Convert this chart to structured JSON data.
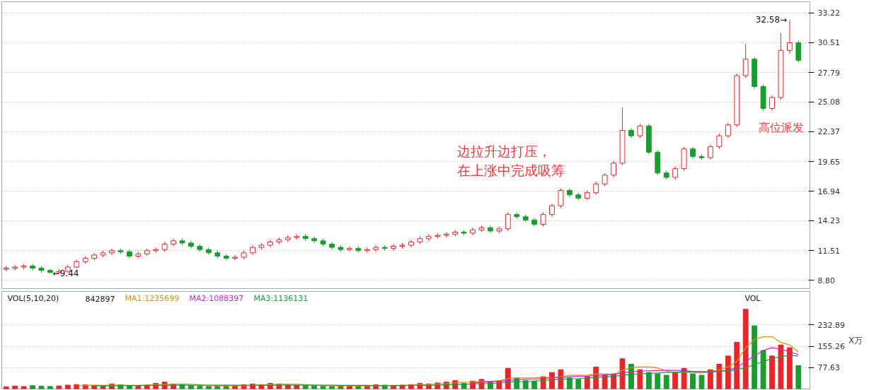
{
  "chart_data": [
    {
      "type": "candlestick",
      "categories": [
        null,
        null,
        null,
        null,
        null,
        null,
        null,
        null,
        null,
        null,
        null,
        null,
        null,
        null,
        null,
        null,
        null,
        null,
        null,
        null,
        null,
        null,
        null,
        null,
        null,
        null,
        null,
        null,
        null,
        null,
        null,
        null,
        null,
        null,
        null,
        null,
        null,
        null,
        null,
        null,
        null,
        null,
        null,
        null,
        null,
        null,
        null,
        null,
        null,
        null,
        null,
        null,
        null,
        null,
        null,
        null,
        null,
        null,
        null,
        null,
        null,
        null,
        null,
        null,
        null,
        null,
        null,
        null,
        null,
        null,
        null,
        null,
        null,
        null,
        null,
        null,
        null,
        null,
        null,
        null,
        null,
        null,
        null,
        null,
        null,
        null,
        null,
        null,
        null,
        null,
        null
      ],
      "ohlc": [
        [
          9.8,
          10.1,
          9.6,
          9.9
        ],
        [
          9.9,
          10.2,
          9.7,
          10.0
        ],
        [
          10.0,
          10.3,
          9.8,
          10.1
        ],
        [
          10.1,
          10.3,
          9.7,
          9.9
        ],
        [
          9.9,
          10.1,
          9.5,
          9.7
        ],
        [
          9.7,
          9.8,
          9.44,
          9.5
        ],
        [
          9.5,
          9.8,
          9.45,
          9.6
        ],
        [
          9.6,
          10.2,
          9.5,
          10.0
        ],
        [
          10.0,
          10.7,
          9.9,
          10.5
        ],
        [
          10.5,
          11.0,
          10.3,
          10.8
        ],
        [
          10.8,
          11.3,
          10.6,
          11.1
        ],
        [
          11.1,
          11.5,
          10.9,
          11.3
        ],
        [
          11.3,
          11.7,
          11.1,
          11.5
        ],
        [
          11.5,
          11.7,
          11.2,
          11.4
        ],
        [
          11.4,
          11.6,
          10.8,
          11.0
        ],
        [
          11.0,
          11.4,
          10.8,
          11.2
        ],
        [
          11.2,
          11.7,
          11.0,
          11.5
        ],
        [
          11.5,
          11.8,
          11.3,
          11.6
        ],
        [
          11.6,
          12.3,
          11.4,
          12.1
        ],
        [
          12.1,
          12.6,
          11.9,
          12.4
        ],
        [
          12.4,
          12.6,
          12.0,
          12.2
        ],
        [
          12.2,
          12.4,
          11.7,
          11.9
        ],
        [
          11.9,
          12.1,
          11.4,
          11.6
        ],
        [
          11.6,
          11.8,
          11.1,
          11.3
        ],
        [
          11.3,
          11.5,
          10.8,
          11.0
        ],
        [
          11.0,
          11.2,
          10.6,
          10.8
        ],
        [
          10.8,
          11.1,
          10.6,
          10.9
        ],
        [
          10.9,
          11.5,
          10.7,
          11.3
        ],
        [
          11.3,
          12.0,
          11.1,
          11.8
        ],
        [
          11.8,
          12.2,
          11.6,
          12.0
        ],
        [
          12.0,
          12.5,
          11.8,
          12.3
        ],
        [
          12.3,
          12.7,
          12.1,
          12.5
        ],
        [
          12.5,
          12.9,
          12.3,
          12.7
        ],
        [
          12.7,
          13.0,
          12.5,
          12.8
        ],
        [
          12.8,
          13.0,
          12.4,
          12.6
        ],
        [
          12.6,
          12.8,
          12.2,
          12.4
        ],
        [
          12.4,
          12.6,
          11.9,
          12.1
        ],
        [
          12.1,
          12.3,
          11.6,
          11.8
        ],
        [
          11.8,
          12.0,
          11.4,
          11.6
        ],
        [
          11.6,
          11.9,
          11.4,
          11.7
        ],
        [
          11.7,
          11.9,
          11.3,
          11.5
        ],
        [
          11.5,
          11.8,
          11.3,
          11.6
        ],
        [
          11.6,
          12.0,
          11.4,
          11.8
        ],
        [
          11.8,
          12.0,
          11.5,
          11.7
        ],
        [
          11.7,
          12.1,
          11.5,
          11.9
        ],
        [
          11.9,
          12.2,
          11.7,
          12.0
        ],
        [
          12.0,
          12.5,
          11.8,
          12.3
        ],
        [
          12.3,
          12.8,
          12.1,
          12.6
        ],
        [
          12.6,
          13.0,
          12.4,
          12.8
        ],
        [
          12.8,
          13.1,
          12.6,
          12.9
        ],
        [
          12.9,
          13.2,
          12.7,
          13.0
        ],
        [
          13.0,
          13.4,
          12.8,
          13.2
        ],
        [
          13.2,
          13.4,
          12.9,
          13.1
        ],
        [
          13.1,
          13.6,
          12.9,
          13.4
        ],
        [
          13.4,
          13.8,
          13.2,
          13.6
        ],
        [
          13.6,
          13.8,
          13.1,
          13.3
        ],
        [
          13.3,
          13.7,
          13.1,
          13.5
        ],
        [
          13.5,
          15.0,
          13.3,
          14.8
        ],
        [
          14.8,
          15.0,
          14.4,
          14.6
        ],
        [
          14.6,
          14.8,
          14.1,
          14.3
        ],
        [
          14.3,
          14.5,
          13.7,
          13.9
        ],
        [
          13.9,
          15.0,
          13.7,
          14.8
        ],
        [
          14.8,
          15.8,
          14.6,
          15.6
        ],
        [
          15.6,
          17.2,
          15.4,
          17.0
        ],
        [
          17.0,
          17.2,
          16.4,
          16.6
        ],
        [
          16.6,
          16.8,
          16.1,
          16.3
        ],
        [
          16.3,
          17.0,
          16.1,
          16.8
        ],
        [
          16.8,
          17.8,
          16.6,
          17.6
        ],
        [
          17.6,
          18.6,
          17.4,
          18.4
        ],
        [
          18.4,
          19.7,
          18.2,
          19.5
        ],
        [
          19.5,
          24.6,
          19.3,
          22.5
        ],
        [
          22.5,
          22.7,
          21.8,
          22.0
        ],
        [
          22.0,
          23.1,
          21.8,
          22.9
        ],
        [
          22.9,
          23.1,
          20.3,
          20.5
        ],
        [
          20.5,
          20.7,
          18.4,
          18.6
        ],
        [
          18.6,
          18.8,
          18.0,
          18.2
        ],
        [
          18.2,
          19.2,
          18.0,
          19.0
        ],
        [
          19.0,
          21.0,
          18.8,
          20.8
        ],
        [
          20.8,
          21.0,
          19.9,
          20.1
        ],
        [
          20.1,
          20.3,
          19.8,
          20.0
        ],
        [
          20.0,
          21.2,
          19.8,
          21.0
        ],
        [
          21.0,
          22.2,
          20.8,
          22.0
        ],
        [
          22.0,
          23.2,
          21.8,
          23.0
        ],
        [
          23.0,
          27.7,
          22.8,
          27.5
        ],
        [
          27.5,
          30.4,
          27.3,
          29.0
        ],
        [
          29.0,
          29.2,
          26.3,
          26.5
        ],
        [
          26.5,
          26.7,
          24.3,
          24.5
        ],
        [
          24.5,
          25.7,
          24.3,
          25.5
        ],
        [
          25.5,
          31.4,
          25.3,
          29.8
        ],
        [
          29.8,
          32.58,
          29.5,
          30.5
        ],
        [
          30.5,
          30.7,
          28.7,
          28.9
        ]
      ],
      "ylim": [
        8.03,
        34.25
      ],
      "yticks": [
        {
          "value": 8.8,
          "label": "8.80"
        },
        11.51,
        14.23,
        16.94,
        19.65,
        22.37,
        25.08,
        27.79,
        30.51,
        33.22
      ],
      "grid": "y",
      "tick_labels": "y",
      "annotations": [
        "←9.44",
        "32.58→",
        "边拉升边打压，",
        "在上涨中完成吸筹",
        "高位派发"
      ]
    },
    {
      "type": "bar",
      "categories": [
        null,
        null,
        null,
        null,
        null,
        null,
        null,
        null,
        null,
        null,
        null,
        null,
        null,
        null,
        null,
        null,
        null,
        null,
        null,
        null,
        null,
        null,
        null,
        null,
        null,
        null,
        null,
        null,
        null,
        null,
        null,
        null,
        null,
        null,
        null,
        null,
        null,
        null,
        null,
        null,
        null,
        null,
        null,
        null,
        null,
        null,
        null,
        null,
        null,
        null,
        null,
        null,
        null,
        null,
        null,
        null,
        null,
        null,
        null,
        null,
        null,
        null,
        null,
        null,
        null,
        null,
        null,
        null,
        null,
        null,
        null,
        null,
        null,
        null,
        null,
        null,
        null,
        null,
        null,
        null,
        null,
        null,
        null,
        null,
        null,
        null,
        null,
        null,
        null,
        null,
        null
      ],
      "series": [
        {
          "type": "bar",
          "values": [
            8,
            10,
            9,
            12,
            10,
            9,
            11,
            14,
            16,
            15,
            12,
            10,
            18,
            15,
            12,
            10,
            14,
            20,
            25,
            18,
            15,
            12,
            10,
            9,
            11,
            13,
            12,
            15,
            18,
            16,
            20,
            18,
            15,
            14,
            12,
            11,
            10,
            9,
            12,
            10,
            10,
            12,
            15,
            14,
            12,
            14,
            16,
            20,
            18,
            22,
            25,
            30,
            20,
            28,
            35,
            25,
            30,
            75,
            40,
            30,
            28,
            45,
            60,
            70,
            40,
            35,
            45,
            80,
            50,
            55,
            110,
            90,
            70,
            60,
            55,
            50,
            60,
            75,
            55,
            50,
            70,
            90,
            120,
            170,
            290,
            230,
            140,
            120,
            160,
            150,
            85
          ],
          "colors": [
            "#e8262a",
            "#e8262a",
            "#e8262a",
            "#1a9c2f",
            "#1a9c2f",
            "#1a9c2f",
            "#e8262a",
            "#e8262a",
            "#e8262a",
            "#e8262a",
            "#e8262a",
            "#e8262a",
            "#e8262a",
            "#1a9c2f",
            "#1a9c2f",
            "#e8262a",
            "#e8262a",
            "#e8262a",
            "#e8262a",
            "#e8262a",
            "#1a9c2f",
            "#1a9c2f",
            "#1a9c2f",
            "#1a9c2f",
            "#1a9c2f",
            "#1a9c2f",
            "#e8262a",
            "#e8262a",
            "#e8262a",
            "#e8262a",
            "#e8262a",
            "#e8262a",
            "#e8262a",
            "#e8262a",
            "#1a9c2f",
            "#1a9c2f",
            "#1a9c2f",
            "#1a9c2f",
            "#1a9c2f",
            "#e8262a",
            "#1a9c2f",
            "#e8262a",
            "#e8262a",
            "#1a9c2f",
            "#e8262a",
            "#e8262a",
            "#e8262a",
            "#e8262a",
            "#e8262a",
            "#e8262a",
            "#e8262a",
            "#e8262a",
            "#1a9c2f",
            "#e8262a",
            "#e8262a",
            "#1a9c2f",
            "#e8262a",
            "#e8262a",
            "#1a9c2f",
            "#1a9c2f",
            "#1a9c2f",
            "#e8262a",
            "#e8262a",
            "#e8262a",
            "#1a9c2f",
            "#1a9c2f",
            "#e8262a",
            "#e8262a",
            "#e8262a",
            "#e8262a",
            "#e8262a",
            "#1a9c2f",
            "#e8262a",
            "#1a9c2f",
            "#1a9c2f",
            "#1a9c2f",
            "#e8262a",
            "#e8262a",
            "#1a9c2f",
            "#1a9c2f",
            "#e8262a",
            "#e8262a",
            "#e8262a",
            "#e8262a",
            "#e8262a",
            "#1a9c2f",
            "#1a9c2f",
            "#e8262a",
            "#e8262a",
            "#e8262a",
            "#1a9c2f"
          ]
        },
        {
          "type": "line",
          "name": "MA1:1235699",
          "color": "#d4920a",
          "values": [
            null,
            null,
            null,
            null,
            null,
            null,
            null,
            null,
            12,
            13,
            14,
            13,
            14,
            14,
            13,
            13,
            14,
            15,
            16,
            17,
            18,
            17,
            15,
            12,
            11,
            11,
            11,
            12,
            14,
            15,
            16,
            17,
            17,
            17,
            16,
            14,
            12,
            11,
            11,
            11,
            11,
            11,
            12,
            12,
            13,
            13,
            14,
            15,
            16,
            18,
            20,
            23,
            24,
            25,
            28,
            28,
            30,
            38,
            40,
            40,
            40,
            44,
            40,
            45,
            50,
            50,
            50,
            55,
            55,
            52,
            68,
            78,
            80,
            80,
            77,
            65,
            60,
            60,
            60,
            58,
            62,
            70,
            80,
            100,
            150,
            180,
            190,
            190,
            170,
            160,
            135
          ]
        },
        {
          "type": "line",
          "name": "MA2:1088397",
          "color": "#d21fd2",
          "values": [
            null,
            null,
            null,
            null,
            null,
            null,
            null,
            null,
            null,
            null,
            null,
            null,
            null,
            null,
            null,
            null,
            null,
            null,
            null,
            null,
            null,
            null,
            null,
            null,
            null,
            null,
            null,
            null,
            null,
            null,
            null,
            null,
            null,
            null,
            null,
            null,
            null,
            null,
            null,
            null,
            null,
            null,
            null,
            null,
            null,
            null,
            null,
            null,
            null,
            null,
            null,
            null,
            null,
            22,
            24,
            26,
            28,
            31,
            33,
            35,
            36,
            38,
            40,
            42,
            44,
            46,
            47,
            49,
            51,
            53,
            58,
            62,
            65,
            66,
            67,
            68,
            68,
            66,
            64,
            62,
            62,
            64,
            68,
            78,
            100,
            120,
            140,
            150,
            145,
            135,
            125
          ]
        },
        {
          "type": "line",
          "name": "MA3:1136131",
          "color": "#199a3c",
          "values": [
            null,
            null,
            null,
            null,
            null,
            null,
            null,
            null,
            null,
            null,
            11,
            11,
            11,
            12,
            12,
            12,
            13,
            13,
            13,
            14,
            14,
            14,
            14,
            14,
            14,
            14,
            14,
            13,
            13,
            13,
            13,
            14,
            14,
            14,
            14,
            14,
            14,
            14,
            13,
            13,
            13,
            13,
            12,
            12,
            12,
            12,
            13,
            13,
            13,
            14,
            15,
            16,
            17,
            18,
            19,
            20,
            22,
            24,
            26,
            27,
            29,
            31,
            33,
            35,
            37,
            38,
            40,
            42,
            44,
            46,
            50,
            53,
            55,
            57,
            58,
            60,
            61,
            62,
            63,
            63,
            63,
            64,
            66,
            70,
            78,
            88,
            100,
            110,
            118,
            122,
            120
          ]
        }
      ],
      "ylim": [
        0,
        355
      ],
      "yticks": [
        77.63,
        155.26,
        232.89
      ],
      "ylabel": "X万",
      "grid": "y",
      "tick_labels": "y",
      "legend": "top left",
      "annotations": [
        "VOL(5,10,20)",
        "842897",
        "VOL"
      ]
    }
  ]
}
